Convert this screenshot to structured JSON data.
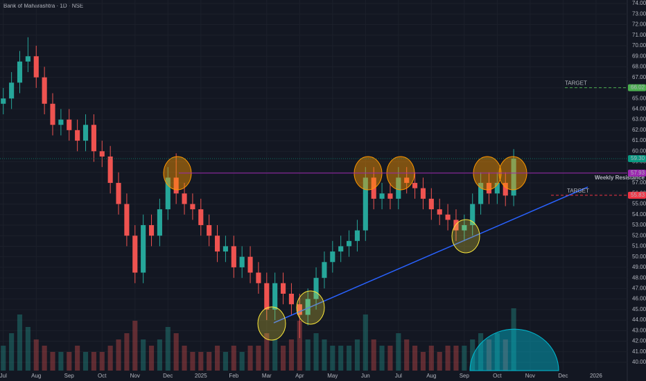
{
  "chart_data": {
    "type": "candlestick",
    "title": "Bank of Maharashtra · 1D · NSE",
    "x": [
      0,
      0.25,
      0.5,
      0.75,
      1,
      1.25,
      1.5,
      1.75,
      2,
      2.25,
      2.5,
      2.75,
      3,
      3.25,
      3.5,
      3.75,
      4,
      4.25,
      4.5,
      4.75,
      5,
      5.25,
      5.5,
      5.75,
      6,
      6.25,
      6.5,
      6.75,
      7,
      7.25,
      7.5,
      7.75,
      8,
      8.25,
      8.5,
      8.75,
      9,
      9.25,
      9.5,
      9.75,
      10,
      10.25,
      10.5,
      10.75,
      11,
      11.25,
      11.5,
      11.75,
      12,
      12.25,
      12.5,
      12.75,
      13,
      13.25,
      13.5,
      13.75,
      14,
      14.25,
      14.5,
      14.75,
      15,
      15.25,
      15.5
    ],
    "open": [
      64.5,
      65,
      66.5,
      68.5,
      69,
      67,
      64.5,
      62.5,
      63,
      62,
      61,
      62.5,
      60,
      59.5,
      57,
      55,
      52,
      48.5,
      53,
      52,
      54.5,
      57.5,
      56,
      55,
      54.5,
      53,
      52,
      50.5,
      51,
      49,
      50,
      48.5,
      47.5,
      45,
      47.5,
      46.5,
      45.5,
      44.5,
      46,
      48,
      49.5,
      50.5,
      51,
      51.5,
      52.5,
      57.5,
      55.5,
      56,
      55.5,
      57.5,
      57,
      56.5,
      55.5,
      54.5,
      54,
      53.5,
      52.5,
      53,
      55,
      57,
      56,
      57,
      55.8
    ],
    "high": [
      66,
      67.5,
      69.5,
      70.8,
      70,
      68,
      65.5,
      64,
      64,
      63,
      63.5,
      63.5,
      61,
      60.5,
      58,
      56,
      53,
      54,
      54,
      55.5,
      58.5,
      59.8,
      57,
      56,
      55.5,
      54,
      53,
      52,
      52,
      51,
      51,
      49.5,
      48.5,
      48.5,
      48.5,
      47.5,
      46.5,
      47,
      49,
      50.5,
      51.5,
      52,
      52.5,
      53.5,
      58.5,
      58.5,
      57,
      57,
      58.5,
      58.5,
      58,
      57.5,
      56.5,
      55.5,
      55,
      54.5,
      54,
      56,
      58,
      58,
      58,
      58,
      60.2
    ],
    "low": [
      63.5,
      64,
      65.5,
      67.5,
      66,
      63.5,
      61.5,
      61.5,
      61,
      60,
      60,
      59,
      58.5,
      56,
      54,
      51,
      47.5,
      47.5,
      51,
      51,
      53.5,
      55,
      54,
      53.5,
      52,
      51,
      49.5,
      49.5,
      48,
      48,
      47.5,
      46.5,
      44,
      44,
      45.5,
      44.5,
      42.3,
      43.5,
      45,
      47,
      48.5,
      49.5,
      50,
      50.5,
      51.5,
      54.5,
      54.5,
      54.5,
      54.5,
      56,
      55.5,
      54.5,
      53.5,
      53,
      52.5,
      51.5,
      51.5,
      52,
      54,
      55,
      55,
      54.8,
      54.8
    ],
    "close": [
      65,
      66.5,
      68.5,
      69,
      67,
      64.5,
      62.5,
      63,
      62,
      61,
      62.5,
      60,
      59.5,
      57,
      55,
      52,
      48.5,
      53,
      52,
      54.5,
      57.5,
      56,
      55,
      54.5,
      53,
      52,
      50.5,
      51,
      49,
      50,
      48.5,
      47.5,
      45,
      47.5,
      46.5,
      45.5,
      44.5,
      46,
      48,
      49.5,
      50.5,
      51,
      51.5,
      52.5,
      57.5,
      55.5,
      56,
      55.5,
      57.5,
      57,
      56.5,
      55.5,
      54.5,
      54,
      53.5,
      52.5,
      53,
      55,
      57,
      56,
      57,
      55.8,
      59.3
    ],
    "volume": [
      4,
      6,
      9,
      7,
      5,
      4,
      3,
      3,
      3,
      4,
      3,
      3,
      3,
      4,
      5,
      6,
      8,
      5,
      4,
      5,
      7,
      6,
      4,
      3,
      3,
      3,
      4,
      3,
      4,
      3,
      4,
      4,
      6,
      5,
      4,
      5,
      8,
      5,
      6,
      5,
      4,
      4,
      4,
      5,
      9,
      5,
      4,
      4,
      6,
      5,
      4,
      3,
      4,
      3,
      4,
      4,
      4,
      5,
      6,
      5,
      6,
      5,
      10
    ],
    "up_color": "#26a69a",
    "down_color": "#ef5350",
    "xlim": [
      -0.1,
      18.95
    ],
    "xticks": [
      {
        "value": 0,
        "label": "Jul"
      },
      {
        "value": 1,
        "label": "Aug"
      },
      {
        "value": 2,
        "label": "Sep"
      },
      {
        "value": 3,
        "label": "Oct"
      },
      {
        "value": 4,
        "label": "Nov"
      },
      {
        "value": 5,
        "label": "Dec"
      },
      {
        "value": 6,
        "label": "2025"
      },
      {
        "value": 7,
        "label": "Feb"
      },
      {
        "value": 8,
        "label": "Mar"
      },
      {
        "value": 9,
        "label": "Apr"
      },
      {
        "value": 10,
        "label": "May"
      },
      {
        "value": 11,
        "label": "Jun"
      },
      {
        "value": 12,
        "label": "Jul"
      },
      {
        "value": 13,
        "label": "Aug"
      },
      {
        "value": 14,
        "label": "Sep"
      },
      {
        "value": 15,
        "label": "Oct"
      },
      {
        "value": 16,
        "label": "Nov"
      },
      {
        "value": 17,
        "label": "Dec"
      },
      {
        "value": 18,
        "label": "2026"
      }
    ],
    "ylim": [
      38.23,
      74.33
    ],
    "yticks": [
      {
        "value": 40,
        "label": "40.00"
      },
      {
        "value": 41,
        "label": "41.00"
      },
      {
        "value": 42,
        "label": "42.00"
      },
      {
        "value": 43,
        "label": "43.00"
      },
      {
        "value": 44,
        "label": "44.00"
      },
      {
        "value": 45,
        "label": "45.00"
      },
      {
        "value": 46,
        "label": "46.00"
      },
      {
        "value": 47,
        "label": "47.00"
      },
      {
        "value": 48,
        "label": "48.00"
      },
      {
        "value": 49,
        "label": "49.00"
      },
      {
        "value": 50,
        "label": "50.00"
      },
      {
        "value": 51,
        "label": "51.00"
      },
      {
        "value": 52,
        "label": "52.00"
      },
      {
        "value": 53,
        "label": "53.00"
      },
      {
        "value": 54,
        "label": "54.00"
      },
      {
        "value": 55,
        "label": "55.00"
      },
      {
        "value": 56,
        "label": "56.00"
      },
      {
        "value": 57,
        "label": "57.00"
      },
      {
        "value": 58,
        "label": "58.00"
      },
      {
        "value": 59,
        "label": "59.00"
      },
      {
        "value": 60,
        "label": "60.00"
      },
      {
        "value": 61,
        "label": "61.00"
      },
      {
        "value": 62,
        "label": "62.00"
      },
      {
        "value": 63,
        "label": "63.00"
      },
      {
        "value": 64,
        "label": "64.00"
      },
      {
        "value": 65,
        "label": "65.00"
      },
      {
        "value": 66,
        "label": "66.00"
      },
      {
        "value": 67,
        "label": "67.00"
      },
      {
        "value": 68,
        "label": "68.00"
      },
      {
        "value": 69,
        "label": "69.00"
      },
      {
        "value": 70,
        "label": "70.00"
      },
      {
        "value": 71,
        "label": "71.00"
      },
      {
        "value": 72,
        "label": "72.00"
      },
      {
        "value": 73,
        "label": "73.00"
      },
      {
        "value": 74,
        "label": "74.00"
      }
    ],
    "levels": [
      {
        "label": "TARGET",
        "value": 66.02,
        "color": "#4caf50"
      },
      {
        "label": "Weekly Resistance",
        "value": 57.93,
        "color": "#9c27b0"
      },
      {
        "label": "TARGET",
        "value": 55.83,
        "color": "#f23645"
      }
    ],
    "last_price": {
      "value": 59.3,
      "label": "59.30",
      "color": "#089981"
    }
  }
}
